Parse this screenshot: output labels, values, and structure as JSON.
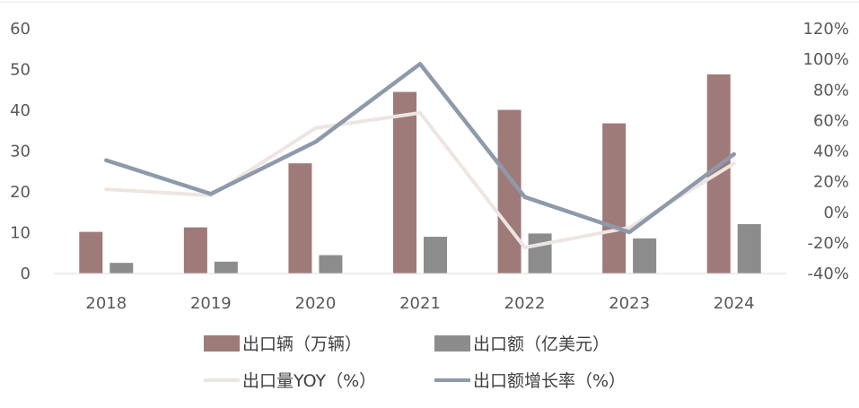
{
  "chart_data": {
    "type": "bar",
    "categories": [
      "2018",
      "2019",
      "2020",
      "2021",
      "2022",
      "2023",
      "2024"
    ],
    "series": [
      {
        "name": "出口辆（万辆）",
        "kind": "bar",
        "axis": "left",
        "color": "#9e7a78",
        "values": [
          10.2,
          11.3,
          27.0,
          44.5,
          40.1,
          36.8,
          48.8
        ]
      },
      {
        "name": "出口额（亿美元）",
        "kind": "bar",
        "axis": "left",
        "color": "#8c8c8c",
        "values": [
          2.6,
          2.9,
          4.5,
          9.0,
          9.8,
          8.6,
          12.1
        ]
      },
      {
        "name": "出口量YOY（%）",
        "kind": "line",
        "axis": "right",
        "color": "#ede5e1",
        "values": [
          15,
          11,
          55,
          65,
          -23,
          -10,
          32
        ]
      },
      {
        "name": "出口额增长率（%）",
        "kind": "line",
        "axis": "right",
        "color": "#8e99aa",
        "values": [
          34,
          12,
          46,
          97,
          10,
          -13,
          38
        ]
      }
    ],
    "y_left": {
      "min": 0,
      "max": 60,
      "ticks": [
        "0",
        "10",
        "20",
        "30",
        "40",
        "50",
        "60"
      ]
    },
    "y_right": {
      "min": -40,
      "max": 120,
      "ticks": [
        "-40%",
        "-20%",
        "0%",
        "20%",
        "40%",
        "60%",
        "80%",
        "100%",
        "120%"
      ]
    },
    "title": "",
    "xlabel": "",
    "ylabel": "",
    "grid": false,
    "legend_position": "bottom"
  }
}
